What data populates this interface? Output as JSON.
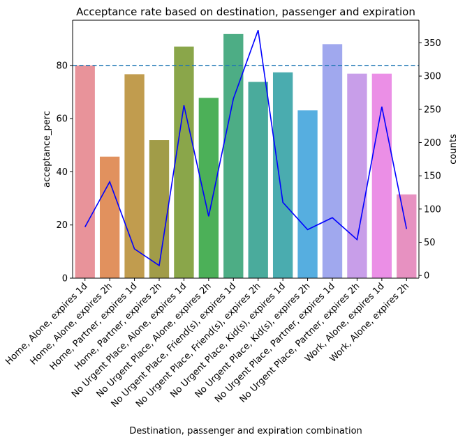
{
  "chart_data": {
    "type": "bar",
    "title": "Acceptance rate based on destination, passenger and expiration",
    "xlabel": "Destination, passenger and expiration combination",
    "ylabel": "acceptance_perc",
    "y2label": "counts",
    "categories": [
      "Home, Alone, expires 1d",
      "Home, Alone, expires 2h",
      "Home, Partner, expires 1d",
      "Home, Partner, expires 2h",
      "No Urgent Place, Alone, expires 1d",
      "No Urgent Place, Alone, expires 2h",
      "No Urgent Place, Friend(s), expires 1d",
      "No Urgent Place, Friend(s), expires 2h",
      "No Urgent Place, Kid(s), expires 1d",
      "No Urgent Place, Kid(s), expires 2h",
      "No Urgent Place, Partner, expires 1d",
      "No Urgent Place, Partner, expires 2h",
      "Work, Alone, expires 1d",
      "Work, Alone, expires 2h"
    ],
    "values": [
      80.0,
      45.7,
      76.7,
      51.9,
      87.1,
      67.8,
      91.8,
      73.8,
      77.4,
      63.1,
      88.0,
      76.9,
      76.9,
      31.5
    ],
    "bar_colors": [
      "#e8939a",
      "#e1915e",
      "#c19c4e",
      "#a19c48",
      "#8aa64a",
      "#4cb058",
      "#4dad85",
      "#4aab9c",
      "#4aacaf",
      "#56aee0",
      "#a0a8ee",
      "#c89ee9",
      "#eb8fe6",
      "#e791c1"
    ],
    "ylim": [
      0,
      97
    ],
    "yticks": [
      0,
      20,
      40,
      60,
      80
    ],
    "y2lim": [
      -4,
      384
    ],
    "y2ticks": [
      0,
      50,
      100,
      150,
      200,
      250,
      300,
      350
    ],
    "series": [
      {
        "type": "line",
        "axis": "right",
        "color": "#0000ff",
        "values": [
          73,
          141,
          40,
          15,
          256,
          89,
          266,
          369,
          110,
          69,
          87,
          54,
          254,
          70
        ]
      }
    ],
    "reference_line": {
      "value": 80,
      "axis": "left",
      "style": "dashed",
      "color": "#1f77b4"
    },
    "grid": false,
    "legend": "none"
  }
}
